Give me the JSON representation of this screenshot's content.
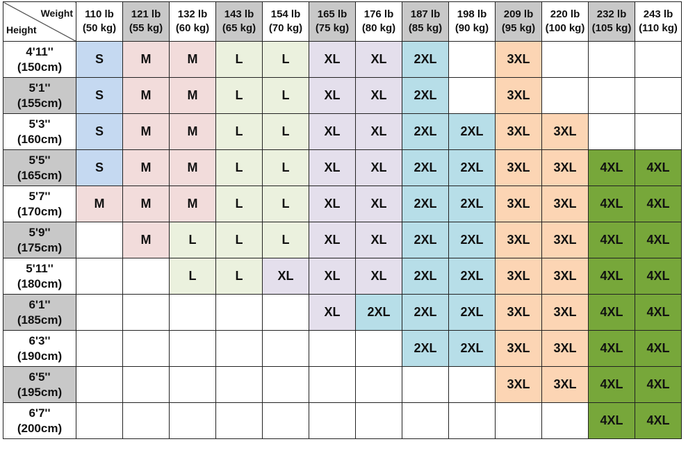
{
  "corner": {
    "top": "Weight",
    "bottom": "Height"
  },
  "columns": [
    {
      "lb": "110 lb",
      "kg": "(50 kg)"
    },
    {
      "lb": "121 lb",
      "kg": "(55 kg)"
    },
    {
      "lb": "132 lb",
      "kg": "(60 kg)"
    },
    {
      "lb": "143 lb",
      "kg": "(65 kg)"
    },
    {
      "lb": "154 lb",
      "kg": "(70 kg)"
    },
    {
      "lb": "165 lb",
      "kg": "(75 kg)"
    },
    {
      "lb": "176 lb",
      "kg": "(80 kg)"
    },
    {
      "lb": "187 lb",
      "kg": "(85 kg)"
    },
    {
      "lb": "198 lb",
      "kg": "(90 kg)"
    },
    {
      "lb": "209 lb",
      "kg": "(95 kg)"
    },
    {
      "lb": "220 lb",
      "kg": "(100 kg)"
    },
    {
      "lb": "232 lb",
      "kg": "(105 kg)"
    },
    {
      "lb": "243 lb",
      "kg": "(110 kg)"
    }
  ],
  "rows": [
    {
      "height": "4'11''",
      "cm": "(150cm)",
      "cells": [
        "S",
        "M",
        "M",
        "L",
        "L",
        "XL",
        "XL",
        "2XL",
        null,
        "3XL",
        null,
        null,
        null
      ]
    },
    {
      "height": "5'1''",
      "cm": "(155cm)",
      "cells": [
        "S",
        "M",
        "M",
        "L",
        "L",
        "XL",
        "XL",
        "2XL",
        null,
        "3XL",
        null,
        null,
        null
      ]
    },
    {
      "height": "5'3''",
      "cm": "(160cm)",
      "cells": [
        "S",
        "M",
        "M",
        "L",
        "L",
        "XL",
        "XL",
        "2XL",
        "2XL",
        "3XL",
        "3XL",
        null,
        null
      ]
    },
    {
      "height": "5'5''",
      "cm": "(165cm)",
      "cells": [
        "S",
        "M",
        "M",
        "L",
        "L",
        "XL",
        "XL",
        "2XL",
        "2XL",
        "3XL",
        "3XL",
        "4XL",
        "4XL"
      ]
    },
    {
      "height": "5'7''",
      "cm": "(170cm)",
      "cells": [
        "M",
        "M",
        "M",
        "L",
        "L",
        "XL",
        "XL",
        "2XL",
        "2XL",
        "3XL",
        "3XL",
        "4XL",
        "4XL"
      ]
    },
    {
      "height": "5'9''",
      "cm": "(175cm)",
      "cells": [
        null,
        "M",
        "L",
        "L",
        "L",
        "XL",
        "XL",
        "2XL",
        "2XL",
        "3XL",
        "3XL",
        "4XL",
        "4XL"
      ]
    },
    {
      "height": "5'11''",
      "cm": "(180cm)",
      "cells": [
        null,
        null,
        "L",
        "L",
        "XL",
        "XL",
        "XL",
        "2XL",
        "2XL",
        "3XL",
        "3XL",
        "4XL",
        "4XL"
      ]
    },
    {
      "height": "6'1''",
      "cm": "(185cm)",
      "cells": [
        null,
        null,
        null,
        null,
        null,
        "XL",
        "2XL",
        "2XL",
        "2XL",
        "3XL",
        "3XL",
        "4XL",
        "4XL"
      ]
    },
    {
      "height": "6'3''",
      "cm": "(190cm)",
      "cells": [
        null,
        null,
        null,
        null,
        null,
        null,
        null,
        "2XL",
        "2XL",
        "3XL",
        "3XL",
        "4XL",
        "4XL"
      ]
    },
    {
      "height": "6'5''",
      "cm": "(195cm)",
      "cells": [
        null,
        null,
        null,
        null,
        null,
        null,
        null,
        null,
        null,
        "3XL",
        "3XL",
        "4XL",
        "4XL"
      ]
    },
    {
      "height": "6'7''",
      "cm": "(200cm)",
      "cells": [
        null,
        null,
        null,
        null,
        null,
        null,
        null,
        null,
        null,
        null,
        null,
        "4XL",
        "4XL"
      ]
    }
  ]
}
